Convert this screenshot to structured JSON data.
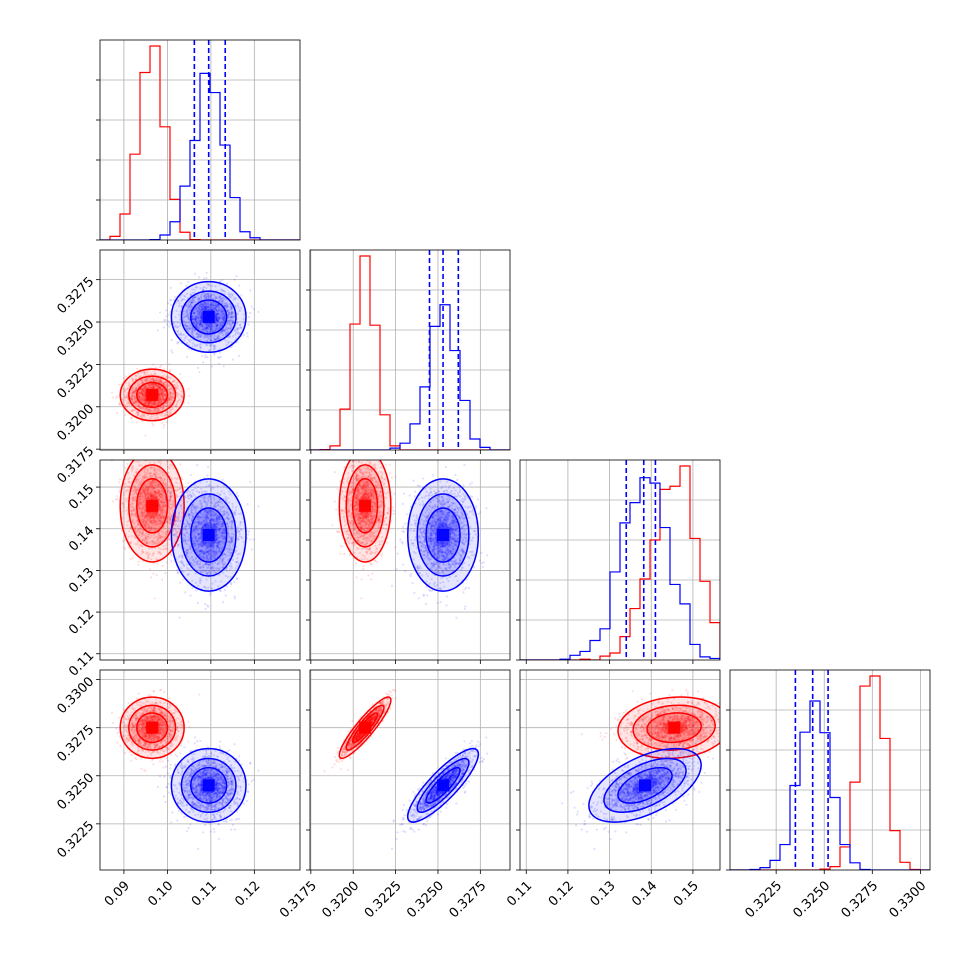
{
  "chart_data": {
    "type": "corner",
    "title": "",
    "grid": true,
    "colors": {
      "red": "#ff0000",
      "blue": "#0000ff"
    },
    "parameters": [
      {
        "name": "",
        "range": [
          0.0845,
          0.1305
        ],
        "ticks": [
          "0.09",
          "0.10",
          "0.11",
          "0.12"
        ]
      },
      {
        "name": "",
        "range": [
          0.31745,
          0.32925
        ],
        "ticks": [
          "0.3175",
          "0.3200",
          "0.3225",
          "0.3250",
          "0.3275"
        ]
      },
      {
        "name": "",
        "range": [
          0.1085,
          0.1565
        ],
        "ticks": [
          "0.11",
          "0.12",
          "0.13",
          "0.14",
          "0.15"
        ]
      },
      {
        "name": "",
        "range": [
          0.3201,
          0.3305
        ],
        "ticks": [
          "0.3225",
          "0.3250",
          "0.3275",
          "0.3300"
        ]
      }
    ],
    "series": [
      {
        "color": "red",
        "mean": [
          0.0965,
          0.3207,
          0.1455,
          0.3275
        ],
        "sd": [
          0.003,
          0.00062,
          0.0055,
          0.00065
        ],
        "corr": [
          [
            1,
            0,
            0,
            0
          ],
          [
            0,
            1,
            0,
            0.9
          ],
          [
            0,
            0,
            1,
            0.1
          ],
          [
            0,
            0.9,
            0.1,
            1
          ]
        ],
        "quantiles": [
          null,
          null,
          null,
          null
        ]
      },
      {
        "color": "blue",
        "mean": [
          0.1095,
          0.3253,
          0.1385,
          0.3245
        ],
        "sd": [
          0.0035,
          0.00085,
          0.0055,
          0.00078
        ],
        "corr": [
          [
            1,
            0,
            0,
            0
          ],
          [
            0,
            1,
            0,
            0.85
          ],
          [
            0,
            0,
            1,
            0.55
          ],
          [
            0,
            0.85,
            0.55,
            1
          ]
        ],
        "quantiles": [
          [
            0.1062,
            0.1095,
            0.1133
          ],
          [
            0.3245,
            0.3253,
            0.3262
          ],
          [
            0.134,
            0.1382,
            0.141
          ],
          [
            0.3235,
            0.3244,
            0.3252
          ]
        ]
      }
    ]
  }
}
